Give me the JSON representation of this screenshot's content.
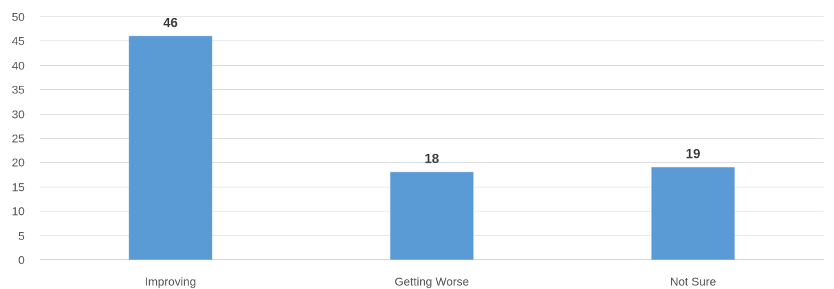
{
  "chart_data": {
    "type": "bar",
    "title": "",
    "xlabel": "",
    "ylabel": "",
    "categories": [
      "Improving",
      "Getting Worse",
      "Not Sure"
    ],
    "values": [
      46,
      18,
      19
    ],
    "data_labels": [
      "46",
      "18",
      "19"
    ],
    "ylim": [
      0,
      50
    ],
    "yticks": [
      0,
      5,
      10,
      15,
      20,
      25,
      30,
      35,
      40,
      45,
      50
    ],
    "ytick_labels": [
      "0",
      "5",
      "10",
      "15",
      "20",
      "25",
      "30",
      "35",
      "40",
      "45",
      "50"
    ],
    "grid": true,
    "legend": "none",
    "colors": {
      "bar": "#5b9bd5",
      "grid": "#d9d9d9",
      "axis": "#bfbfbf",
      "tick_text": "#595959",
      "data_label_text": "#404040"
    }
  }
}
